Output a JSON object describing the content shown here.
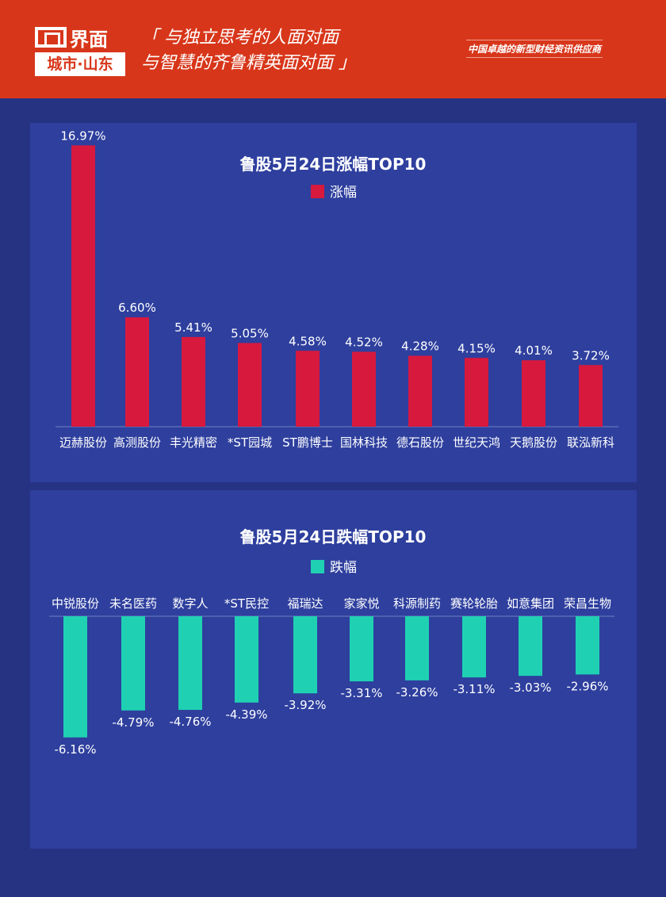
{
  "header": {
    "logo_name": "界面",
    "logo_city": "城市·山东",
    "slogan_line1": "「 与独立思考的人面对面",
    "slogan_line2": "与智慧的齐鲁精英面对面 」",
    "tagline": "中国卓越的新型财经资讯供应商"
  },
  "chart_data": [
    {
      "type": "bar",
      "title": "鲁股5月24日涨幅TOP10",
      "categories": [
        "迈赫股份",
        "高测股份",
        "丰光精密",
        "*ST园城",
        "ST鹏博士",
        "国林科技",
        "德石股份",
        "世纪天鸿",
        "天鹅股份",
        "联泓新科"
      ],
      "series": [
        {
          "name": "涨幅",
          "values": [
            16.97,
            6.6,
            5.41,
            5.05,
            4.58,
            4.52,
            4.28,
            4.15,
            4.01,
            3.72
          ],
          "labels": [
            "16.97%",
            "6.60%",
            "5.41%",
            "5.05%",
            "4.58%",
            "4.52%",
            "4.28%",
            "4.15%",
            "4.01%",
            "3.72%"
          ],
          "color": "#d7193e"
        }
      ],
      "legend": "top",
      "grid": false
    },
    {
      "type": "bar",
      "title": "鲁股5月24日跌幅TOP10",
      "categories": [
        "中锐股份",
        "未名医药",
        "数字人",
        "*ST民控",
        "福瑞达",
        "家家悦",
        "科源制药",
        "赛轮轮胎",
        "如意集团",
        "荣昌生物"
      ],
      "series": [
        {
          "name": "跌幅",
          "values": [
            -6.16,
            -4.79,
            -4.76,
            -4.39,
            -3.92,
            -3.31,
            -3.26,
            -3.11,
            -3.03,
            -2.96
          ],
          "labels": [
            "-6.16%",
            "-4.79%",
            "-4.76%",
            "-4.39%",
            "-3.92%",
            "-3.31%",
            "-3.26%",
            "-3.11%",
            "-3.03%",
            "-2.96%"
          ],
          "color": "#1fd1b2"
        }
      ],
      "legend": "top",
      "grid": false
    }
  ]
}
